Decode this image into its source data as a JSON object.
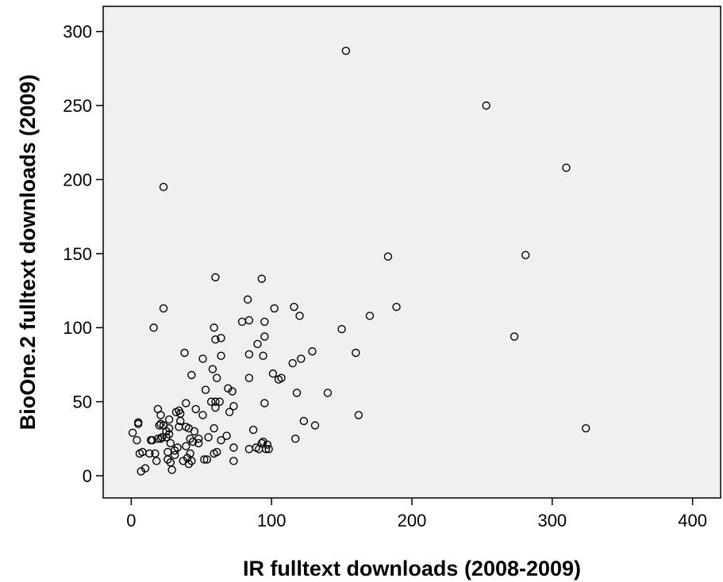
{
  "chart_data": {
    "type": "scatter",
    "xlabel": "IR fulltext downloads (2008-2009)",
    "ylabel": "BioOne.2 fulltext downloads (2009)",
    "xlim": [
      -20,
      420
    ],
    "ylim": [
      -15,
      317
    ],
    "xticks": [
      0,
      100,
      200,
      300,
      400
    ],
    "yticks": [
      0,
      50,
      100,
      150,
      200,
      250,
      300
    ],
    "grid": false,
    "colors": {
      "plot_background": "#f0f0f0",
      "marker_stroke": "#000000",
      "marker_fill": "none"
    },
    "points": [
      [
        1,
        29
      ],
      [
        4,
        24
      ],
      [
        5,
        36
      ],
      [
        5,
        35
      ],
      [
        6,
        15
      ],
      [
        7,
        3
      ],
      [
        8,
        16
      ],
      [
        10,
        5
      ],
      [
        13,
        15
      ],
      [
        14,
        24
      ],
      [
        15,
        24
      ],
      [
        16,
        100
      ],
      [
        17,
        15
      ],
      [
        18,
        10
      ],
      [
        19,
        45
      ],
      [
        19,
        25
      ],
      [
        20,
        34
      ],
      [
        21,
        25
      ],
      [
        21,
        35
      ],
      [
        21,
        41
      ],
      [
        22,
        26
      ],
      [
        23,
        34
      ],
      [
        23,
        195
      ],
      [
        23,
        113
      ],
      [
        25,
        26
      ],
      [
        25,
        30
      ],
      [
        26,
        11
      ],
      [
        26,
        16
      ],
      [
        27,
        38
      ],
      [
        27,
        28
      ],
      [
        27,
        32
      ],
      [
        28,
        9
      ],
      [
        28,
        22
      ],
      [
        29,
        4
      ],
      [
        31,
        14
      ],
      [
        31,
        17
      ],
      [
        32,
        43
      ],
      [
        33,
        19
      ],
      [
        34,
        44
      ],
      [
        34,
        33
      ],
      [
        35,
        37
      ],
      [
        35,
        42
      ],
      [
        37,
        10
      ],
      [
        38,
        83
      ],
      [
        39,
        49
      ],
      [
        39,
        20
      ],
      [
        39,
        33
      ],
      [
        40,
        12
      ],
      [
        41,
        32
      ],
      [
        41,
        8
      ],
      [
        42,
        15
      ],
      [
        42,
        25
      ],
      [
        43,
        68
      ],
      [
        43,
        10
      ],
      [
        44,
        23
      ],
      [
        45,
        30
      ],
      [
        46,
        45
      ],
      [
        48,
        22
      ],
      [
        48,
        25
      ],
      [
        51,
        79
      ],
      [
        51,
        41
      ],
      [
        52,
        11
      ],
      [
        53,
        58
      ],
      [
        54,
        11
      ],
      [
        55,
        26
      ],
      [
        57,
        50
      ],
      [
        58,
        72
      ],
      [
        59,
        100
      ],
      [
        59,
        32
      ],
      [
        59,
        15
      ],
      [
        60,
        134
      ],
      [
        60,
        50
      ],
      [
        60,
        46
      ],
      [
        60,
        92
      ],
      [
        61,
        16
      ],
      [
        61,
        66
      ],
      [
        63,
        50
      ],
      [
        64,
        93
      ],
      [
        64,
        81
      ],
      [
        64,
        24
      ],
      [
        68,
        27
      ],
      [
        69,
        59
      ],
      [
        70,
        43
      ],
      [
        72,
        57
      ],
      [
        73,
        47
      ],
      [
        73,
        19
      ],
      [
        73,
        10
      ],
      [
        79,
        104
      ],
      [
        83,
        119
      ],
      [
        84,
        105
      ],
      [
        84,
        82
      ],
      [
        84,
        66
      ],
      [
        84,
        18
      ],
      [
        87,
        31
      ],
      [
        89,
        19
      ],
      [
        90,
        89
      ],
      [
        91,
        18
      ],
      [
        93,
        133
      ],
      [
        93,
        22
      ],
      [
        94,
        23
      ],
      [
        94,
        81
      ],
      [
        95,
        94
      ],
      [
        95,
        49
      ],
      [
        95,
        104
      ],
      [
        96,
        18
      ],
      [
        97,
        21
      ],
      [
        98,
        18
      ],
      [
        101,
        69
      ],
      [
        102,
        113
      ],
      [
        105,
        65
      ],
      [
        107,
        66
      ],
      [
        115,
        76
      ],
      [
        116,
        114
      ],
      [
        117,
        25
      ],
      [
        118,
        56
      ],
      [
        120,
        108
      ],
      [
        121,
        79
      ],
      [
        123,
        37
      ],
      [
        129,
        84
      ],
      [
        131,
        34
      ],
      [
        140,
        56
      ],
      [
        150,
        99
      ],
      [
        153,
        287
      ],
      [
        160,
        83
      ],
      [
        162,
        41
      ],
      [
        170,
        108
      ],
      [
        183,
        148
      ],
      [
        189,
        114
      ],
      [
        253,
        250
      ],
      [
        273,
        94
      ],
      [
        281,
        149
      ],
      [
        310,
        208
      ],
      [
        324,
        32
      ]
    ]
  }
}
